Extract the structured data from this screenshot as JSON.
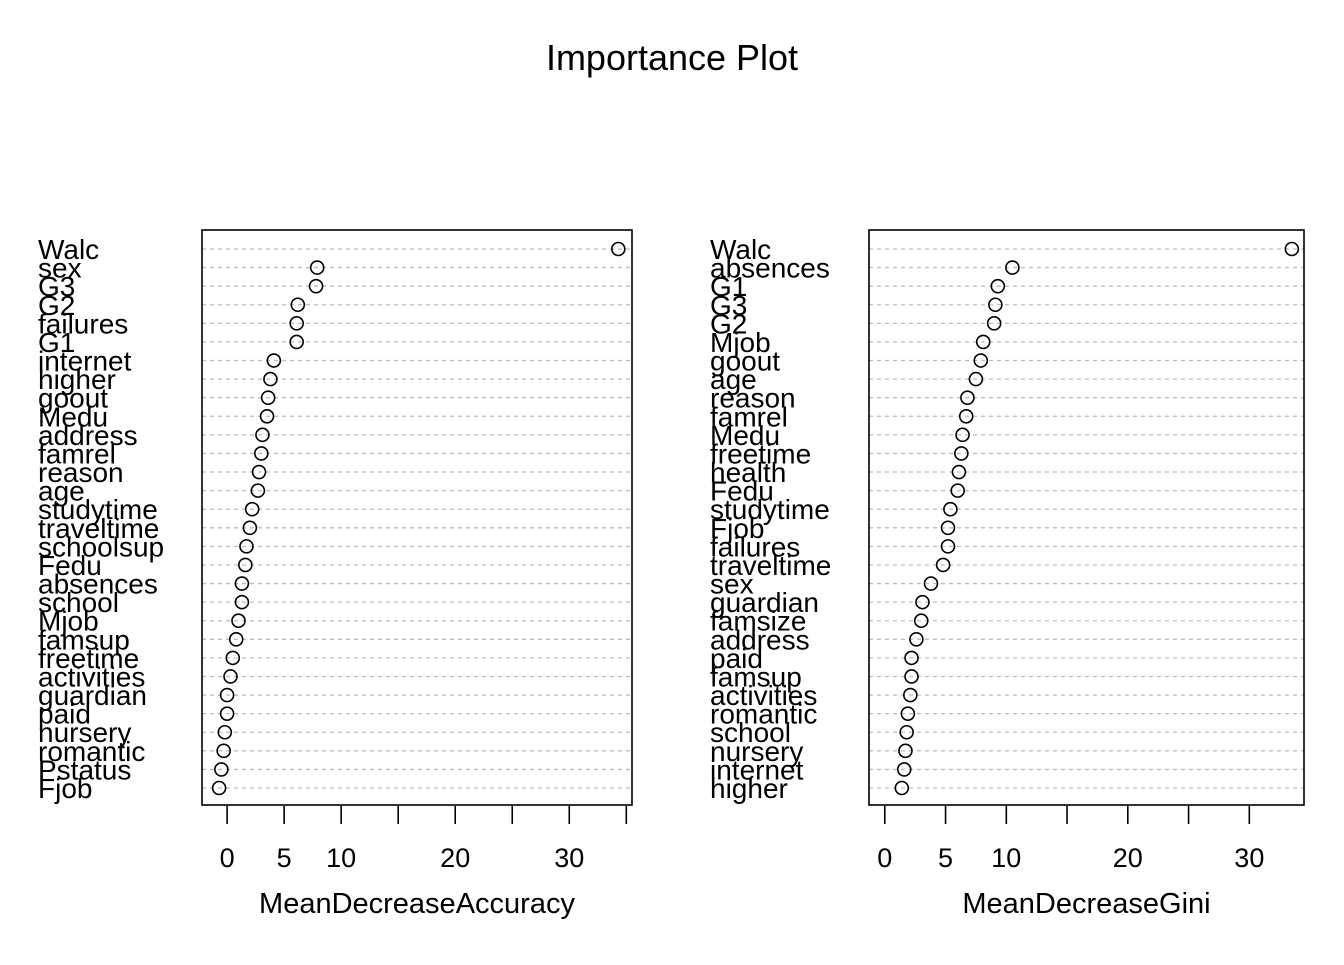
{
  "chart_data": {
    "title": "Importance Plot",
    "type": "dotchart",
    "grid": true,
    "panels": [
      {
        "type": "scatter",
        "xlabel": "MeanDecreaseAccuracy",
        "xticks": [
          0,
          5,
          10,
          20,
          30
        ],
        "xlim": [
          -2.2,
          35.5
        ],
        "variables": [
          "Walc",
          "sex",
          "G3",
          "G2",
          "failures",
          "G1",
          "internet",
          "higher",
          "goout",
          "Medu",
          "address",
          "famrel",
          "reason",
          "age",
          "studytime",
          "traveltime",
          "schoolsup",
          "Fedu",
          "absences",
          "school",
          "Mjob",
          "famsup",
          "freetime",
          "activities",
          "guardian",
          "paid",
          "nursery",
          "romantic",
          "Pstatus",
          "Fjob"
        ],
        "values": [
          34.3,
          7.9,
          7.8,
          6.2,
          6.1,
          6.1,
          4.1,
          3.8,
          3.6,
          3.5,
          3.1,
          3.0,
          2.8,
          2.7,
          2.2,
          2.0,
          1.7,
          1.6,
          1.3,
          1.3,
          1.0,
          0.8,
          0.5,
          0.3,
          0.0,
          0.0,
          -0.2,
          -0.3,
          -0.5,
          -0.7
        ]
      },
      {
        "type": "scatter",
        "xlabel": "MeanDecreaseGini",
        "xticks": [
          0,
          5,
          10,
          20,
          30
        ],
        "xlim": [
          -1.3,
          34.5
        ],
        "variables": [
          "Walc",
          "absences",
          "G1",
          "G3",
          "G2",
          "Mjob",
          "goout",
          "age",
          "reason",
          "famrel",
          "Medu",
          "freetime",
          "health",
          "Fedu",
          "studytime",
          "Fjob",
          "failures",
          "traveltime",
          "sex",
          "guardian",
          "famsize",
          "address",
          "paid",
          "famsup",
          "activities",
          "romantic",
          "school",
          "nursery",
          "internet",
          "higher"
        ],
        "values": [
          33.5,
          10.5,
          9.3,
          9.1,
          9.0,
          8.1,
          7.9,
          7.5,
          6.8,
          6.7,
          6.4,
          6.3,
          6.1,
          6.0,
          5.4,
          5.2,
          5.2,
          4.8,
          3.8,
          3.1,
          3.0,
          2.6,
          2.2,
          2.2,
          2.1,
          1.9,
          1.8,
          1.7,
          1.6,
          1.4
        ]
      }
    ]
  }
}
